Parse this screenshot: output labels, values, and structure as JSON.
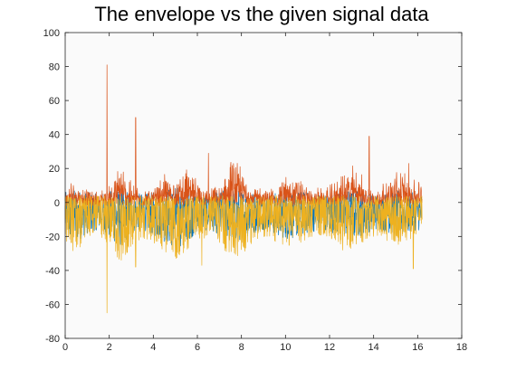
{
  "chart_data": {
    "type": "line",
    "title": "The envelope vs the given signal data",
    "xlabel": "",
    "ylabel": "",
    "xlim": [
      0,
      18
    ],
    "ylim": [
      -80,
      100
    ],
    "x_ticks": [
      0,
      2,
      4,
      6,
      8,
      10,
      12,
      14,
      16,
      18
    ],
    "y_ticks": [
      -80,
      -60,
      -40,
      -20,
      0,
      20,
      40,
      60,
      80,
      100
    ],
    "x_tick_labels": [
      "0",
      "2",
      "4",
      "6",
      "8",
      "10",
      "12",
      "14",
      "16",
      "18"
    ],
    "y_tick_labels": [
      "-80",
      "-60",
      "-40",
      "-20",
      "0",
      "20",
      "40",
      "60",
      "80",
      "100"
    ],
    "grid": false,
    "legend": "none",
    "x_range": [
      0,
      16.2
    ],
    "series": [
      {
        "role": "signal",
        "color": "#0072BD",
        "envelope_top": [
          6,
          8,
          6,
          5,
          7,
          9,
          6,
          5,
          6,
          8,
          10,
          7,
          6,
          5,
          7,
          9,
          8,
          6,
          5,
          6,
          8,
          7,
          6,
          5,
          6,
          7,
          8,
          6,
          5,
          6,
          7,
          6,
          5
        ],
        "envelope_bottom": [
          -20,
          -24,
          -18,
          -16,
          -22,
          -26,
          -18,
          -16,
          -20,
          -24,
          -28,
          -22,
          -18,
          -16,
          -20,
          -24,
          -22,
          -18,
          -16,
          -20,
          -22,
          -20,
          -18,
          -16,
          -18,
          -20,
          -22,
          -18,
          -16,
          -18,
          -20,
          -18,
          -16
        ]
      },
      {
        "role": "upper-envelope",
        "color": "#D95319",
        "values": [
          10,
          14,
          9,
          8,
          12,
          22,
          12,
          9,
          10,
          18,
          14,
          22,
          11,
          9,
          12,
          26,
          20,
          12,
          9,
          11,
          18,
          14,
          10,
          9,
          12,
          18,
          24,
          12,
          9,
          14,
          20,
          16,
          12
        ],
        "peaks": [
          [
            1.9,
            81
          ],
          [
            3.2,
            50
          ],
          [
            6.5,
            29
          ],
          [
            13.8,
            39
          ],
          [
            15.6,
            23
          ]
        ]
      },
      {
        "role": "lower-envelope",
        "color": "#EDB120",
        "values": [
          -28,
          -30,
          -22,
          -20,
          -26,
          -36,
          -26,
          -22,
          -24,
          -30,
          -34,
          -28,
          -22,
          -20,
          -26,
          -34,
          -30,
          -22,
          -20,
          -24,
          -26,
          -24,
          -22,
          -20,
          -22,
          -26,
          -28,
          -22,
          -20,
          -24,
          -26,
          -22,
          -18
        ],
        "troughs": [
          [
            1.9,
            -65
          ],
          [
            3.2,
            -38
          ],
          [
            6.2,
            -37
          ],
          [
            12.6,
            -28
          ],
          [
            15.8,
            -39
          ]
        ]
      }
    ],
    "colors": {
      "axes_background": "#FAFAFA",
      "axes_border": "#262626"
    }
  }
}
